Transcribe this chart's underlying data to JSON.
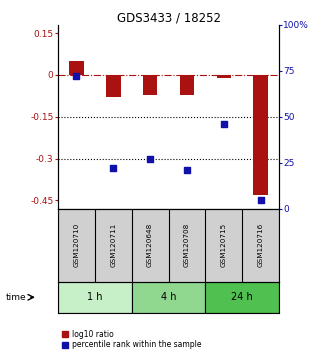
{
  "title": "GDS3433 / 18252",
  "samples": [
    "GSM120710",
    "GSM120711",
    "GSM120648",
    "GSM120708",
    "GSM120715",
    "GSM120716"
  ],
  "log10_ratio": [
    0.05,
    -0.08,
    -0.07,
    -0.07,
    -0.01,
    -0.43
  ],
  "percentile_rank": [
    72,
    22,
    27,
    21,
    46,
    5
  ],
  "groups": [
    {
      "label": "1 h",
      "indices": [
        0,
        1
      ],
      "color": "#c8f0c8"
    },
    {
      "label": "4 h",
      "indices": [
        2,
        3
      ],
      "color": "#90d890"
    },
    {
      "label": "24 h",
      "indices": [
        4,
        5
      ],
      "color": "#50c050"
    }
  ],
  "bar_color": "#aa1111",
  "dot_color": "#1111aa",
  "ylim_left": [
    -0.48,
    0.18
  ],
  "ylim_right": [
    0,
    100
  ],
  "yticks_left": [
    0.15,
    0,
    -0.15,
    -0.3,
    -0.45
  ],
  "yticks_right": [
    100,
    75,
    50,
    25,
    0
  ],
  "hline_y": 0,
  "dotted_lines": [
    -0.15,
    -0.3
  ],
  "bar_width": 0.4,
  "dot_size": 25,
  "background_color": "#ffffff",
  "label_log10": "log10 ratio",
  "label_pct": "percentile rank within the sample",
  "time_label": "time"
}
